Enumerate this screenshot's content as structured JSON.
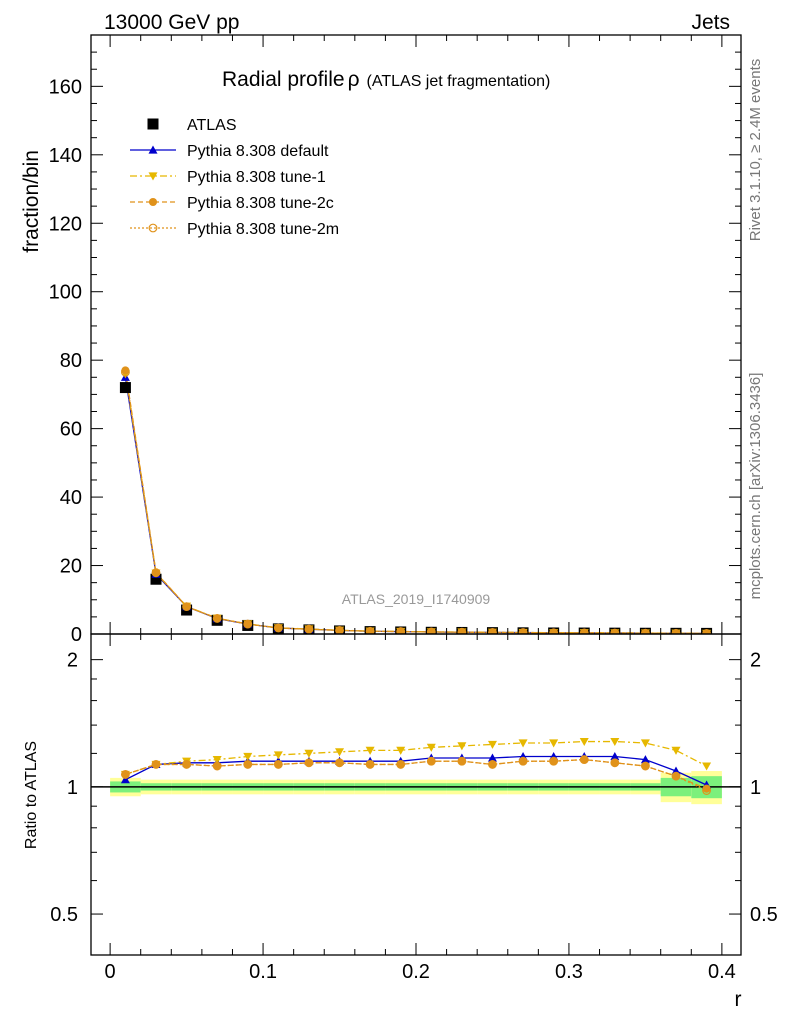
{
  "header": {
    "left": "13000 GeV pp",
    "right": "Jets"
  },
  "side": {
    "rivet": "Rivet 3.1.10, ≥ 2.4M events",
    "mcplots": "mcplots.cern.ch [arXiv:1306.3436]"
  },
  "watermark": "ATLAS_2019_I1740909",
  "title": {
    "main": "Radial profile",
    "rho": "ρ",
    "sub": "(ATLAS jet fragmentation)"
  },
  "colors": {
    "atlas": "#000000",
    "default": "#0000cc",
    "tune1": "#e6b800",
    "tune2c": "#e0921a",
    "tune2m": "#e0921a",
    "band_green": "#7cf07c",
    "band_yellow": "#ffff99"
  },
  "chart_data": [
    {
      "type": "scatter",
      "panel": "main",
      "xlabel": "",
      "ylabel": "fraction/bin",
      "xlim": [
        -0.0125,
        0.4125
      ],
      "ylim": [
        0,
        175
      ],
      "yticks": [
        0,
        20,
        40,
        60,
        80,
        100,
        120,
        140,
        160
      ],
      "ytick_labels": [
        "0",
        "20",
        "40",
        "60",
        "80",
        "100",
        "120",
        "140",
        "160"
      ],
      "x": [
        0.01,
        0.03,
        0.05,
        0.07,
        0.09,
        0.11,
        0.13,
        0.15,
        0.17,
        0.19,
        0.21,
        0.23,
        0.25,
        0.27,
        0.29,
        0.31,
        0.33,
        0.35,
        0.37,
        0.39
      ],
      "series": [
        {
          "name": "ATLAS",
          "key": "atlas",
          "values": [
            72,
            16,
            7,
            4,
            2.5,
            1.5,
            1.2,
            0.9,
            0.7,
            0.6,
            0.5,
            0.45,
            0.4,
            0.35,
            0.3,
            0.28,
            0.25,
            0.22,
            0.2,
            0.18
          ]
        },
        {
          "name": "Pythia 8.308 default",
          "key": "default",
          "values": [
            75,
            17.5,
            8,
            4.5,
            2.9,
            1.75,
            1.4,
            1.05,
            0.8,
            0.7,
            0.59,
            0.53,
            0.47,
            0.42,
            0.35,
            0.33,
            0.3,
            0.26,
            0.22,
            0.18
          ]
        },
        {
          "name": "Pythia 8.308 tune-1",
          "key": "tune1",
          "values": [
            76,
            17.8,
            8.1,
            4.6,
            2.95,
            1.8,
            1.45,
            1.1,
            0.85,
            0.74,
            0.63,
            0.58,
            0.52,
            0.46,
            0.39,
            0.37,
            0.33,
            0.29,
            0.25,
            0.2
          ]
        },
        {
          "name": "Pythia 8.308 tune-2c",
          "key": "tune2c",
          "values": [
            77,
            18,
            8,
            4.6,
            2.9,
            1.75,
            1.4,
            1.05,
            0.8,
            0.7,
            0.59,
            0.52,
            0.46,
            0.41,
            0.35,
            0.33,
            0.29,
            0.25,
            0.21,
            0.18
          ]
        },
        {
          "name": "Pythia 8.308 tune-2m",
          "key": "tune2m",
          "values": [
            76.5,
            17.9,
            8,
            4.55,
            2.9,
            1.75,
            1.4,
            1.05,
            0.8,
            0.7,
            0.59,
            0.52,
            0.46,
            0.41,
            0.35,
            0.33,
            0.29,
            0.25,
            0.21,
            0.18
          ]
        }
      ]
    },
    {
      "type": "scatter",
      "panel": "ratio",
      "xlabel": "r",
      "ylabel": "Ratio to ATLAS",
      "xlim": [
        -0.0125,
        0.4125
      ],
      "ylim": [
        0.4,
        2.3
      ],
      "log_y": true,
      "xticks": [
        0,
        0.1,
        0.2,
        0.3,
        0.4
      ],
      "xtick_labels": [
        "0",
        "0.1",
        "0.2",
        "0.3",
        "0.4"
      ],
      "yticks": [
        0.5,
        1,
        2
      ],
      "ytick_labels": [
        "0.5",
        "1",
        "2"
      ],
      "x": [
        0.01,
        0.03,
        0.05,
        0.07,
        0.09,
        0.11,
        0.13,
        0.15,
        0.17,
        0.19,
        0.21,
        0.23,
        0.25,
        0.27,
        0.29,
        0.31,
        0.33,
        0.35,
        0.37,
        0.39
      ],
      "band_green": [
        0.03,
        0.02,
        0.02,
        0.02,
        0.02,
        0.02,
        0.02,
        0.02,
        0.02,
        0.02,
        0.02,
        0.02,
        0.02,
        0.02,
        0.02,
        0.02,
        0.02,
        0.02,
        0.05,
        0.06
      ],
      "band_yellow": [
        0.05,
        0.04,
        0.04,
        0.04,
        0.04,
        0.04,
        0.04,
        0.04,
        0.04,
        0.04,
        0.04,
        0.04,
        0.04,
        0.04,
        0.04,
        0.04,
        0.04,
        0.04,
        0.08,
        0.09
      ],
      "series": [
        {
          "name": "Pythia 8.308 default",
          "key": "default",
          "values": [
            1.04,
            1.13,
            1.14,
            1.14,
            1.15,
            1.15,
            1.15,
            1.15,
            1.15,
            1.15,
            1.17,
            1.17,
            1.17,
            1.18,
            1.18,
            1.18,
            1.18,
            1.16,
            1.09,
            1.01
          ]
        },
        {
          "name": "Pythia 8.308 tune-1",
          "key": "tune1",
          "values": [
            1.07,
            1.13,
            1.15,
            1.16,
            1.18,
            1.19,
            1.2,
            1.21,
            1.22,
            1.22,
            1.24,
            1.25,
            1.26,
            1.27,
            1.27,
            1.28,
            1.28,
            1.27,
            1.22,
            1.12
          ]
        },
        {
          "name": "Pythia 8.308 tune-2c",
          "key": "tune2c",
          "values": [
            1.07,
            1.13,
            1.13,
            1.12,
            1.13,
            1.13,
            1.14,
            1.14,
            1.13,
            1.13,
            1.15,
            1.15,
            1.13,
            1.15,
            1.15,
            1.16,
            1.14,
            1.12,
            1.06,
            0.99
          ]
        },
        {
          "name": "Pythia 8.308 tune-2m",
          "key": "tune2m",
          "values": [
            1.07,
            1.13,
            1.13,
            1.12,
            1.13,
            1.13,
            1.14,
            1.14,
            1.13,
            1.13,
            1.15,
            1.15,
            1.13,
            1.15,
            1.15,
            1.16,
            1.14,
            1.12,
            1.06,
            0.98
          ]
        }
      ]
    }
  ]
}
